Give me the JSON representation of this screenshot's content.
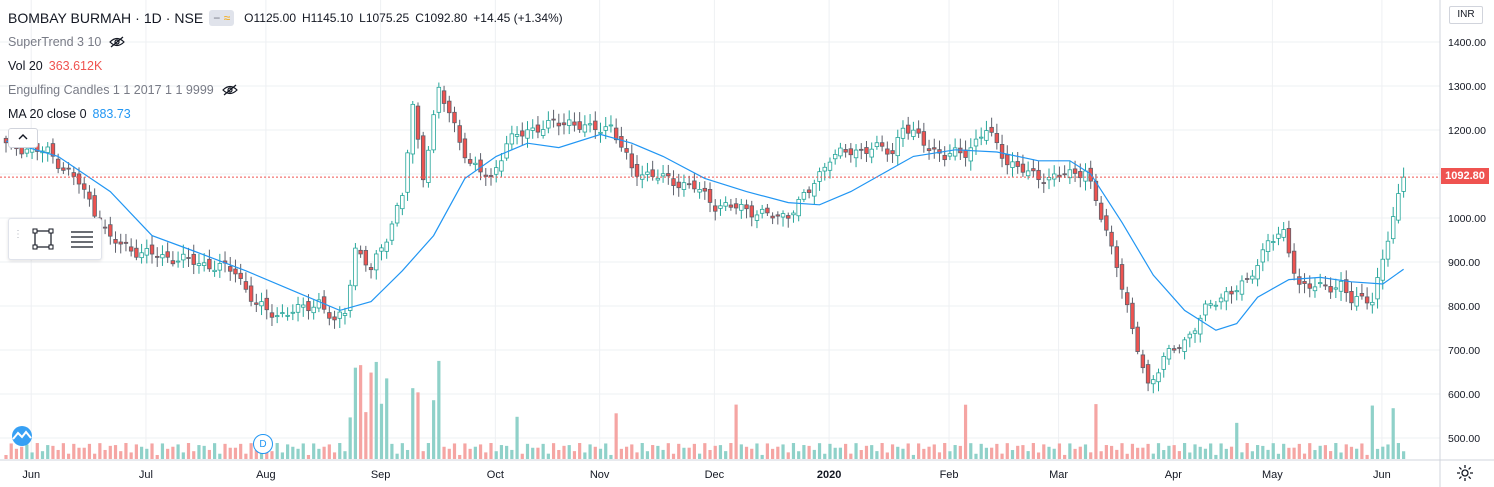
{
  "header": {
    "symbol": "BOMBAY BURMAH",
    "interval": "1D",
    "exchange": "NSE",
    "separator": "·",
    "open": "O1125.00",
    "high": "H1145.10",
    "low": "L1075.25",
    "close": "C1092.80",
    "change": "+14.45 (+1.34%)"
  },
  "indicators": [
    {
      "name": "SuperTrend 3 10",
      "value": ""
    },
    {
      "name": "Vol 20",
      "value": "363.612K"
    },
    {
      "name": "Engulfing Candles 1 1 2017 1 1 9999",
      "value": ""
    },
    {
      "name": "MA 20 close 0",
      "value": "883.73"
    }
  ],
  "controls": {
    "currency": "INR",
    "last_price_label": "1092.80",
    "dividend_marker": "D",
    "collapse": "^"
  },
  "colors": {
    "up": "#26a69a",
    "down": "#ef5350",
    "up_vol": "#8fd1c9",
    "down_vol": "#f5a5a3",
    "ma": "#2196f3",
    "last_line": "#ef5350",
    "grid": "#eef0f3"
  },
  "chart_data": {
    "type": "candlestick",
    "title": "BOMBAY BURMAH · 1D · NSE",
    "y_axis_ticks": [
      "500.00",
      "600.00",
      "700.00",
      "800.00",
      "900.00",
      "1000.00",
      "1100.00",
      "1200.00",
      "1300.00",
      "1400.00"
    ],
    "ylim": [
      460,
      1460
    ],
    "x_axis_ticks": [
      {
        "label": "Jun",
        "index": 1
      },
      {
        "label": "Jul",
        "index": 23
      },
      {
        "label": "Aug",
        "index": 46
      },
      {
        "label": "Sep",
        "index": 68
      },
      {
        "label": "Oct",
        "index": 90
      },
      {
        "label": "Nov",
        "index": 110
      },
      {
        "label": "Dec",
        "index": 132
      },
      {
        "label": "2020",
        "index": 154
      },
      {
        "label": "Feb",
        "index": 177
      },
      {
        "label": "Mar",
        "index": 198
      },
      {
        "label": "Apr",
        "index": 220
      },
      {
        "label": "May",
        "index": 239
      },
      {
        "label": "Jun",
        "index": 260
      }
    ],
    "candle_count": 265,
    "last_close": 1092.8,
    "key_points": [
      {
        "i": 0,
        "close": 1165
      },
      {
        "i": 8,
        "close": 1150
      },
      {
        "i": 14,
        "close": 1080
      },
      {
        "i": 20,
        "close": 950
      },
      {
        "i": 26,
        "close": 920
      },
      {
        "i": 34,
        "close": 905
      },
      {
        "i": 44,
        "close": 880
      },
      {
        "i": 48,
        "close": 800
      },
      {
        "i": 52,
        "close": 780
      },
      {
        "i": 56,
        "close": 790
      },
      {
        "i": 60,
        "close": 810
      },
      {
        "i": 63,
        "close": 760
      },
      {
        "i": 65,
        "close": 790
      },
      {
        "i": 67,
        "close": 930
      },
      {
        "i": 70,
        "close": 880
      },
      {
        "i": 73,
        "close": 960
      },
      {
        "i": 76,
        "close": 1050
      },
      {
        "i": 78,
        "close": 1250
      },
      {
        "i": 80,
        "close": 1100
      },
      {
        "i": 83,
        "close": 1290
      },
      {
        "i": 86,
        "close": 1210
      },
      {
        "i": 89,
        "close": 1120
      },
      {
        "i": 93,
        "close": 1090
      },
      {
        "i": 96,
        "close": 1170
      },
      {
        "i": 100,
        "close": 1200
      },
      {
        "i": 104,
        "close": 1210
      },
      {
        "i": 108,
        "close": 1220
      },
      {
        "i": 112,
        "close": 1200
      },
      {
        "i": 116,
        "close": 1210
      },
      {
        "i": 120,
        "close": 1110
      },
      {
        "i": 126,
        "close": 1090
      },
      {
        "i": 132,
        "close": 1070
      },
      {
        "i": 136,
        "close": 1030
      },
      {
        "i": 142,
        "close": 1020
      },
      {
        "i": 148,
        "close": 1000
      },
      {
        "i": 150,
        "close": 1010
      },
      {
        "i": 154,
        "close": 1060
      },
      {
        "i": 158,
        "close": 1140
      },
      {
        "i": 162,
        "close": 1150
      },
      {
        "i": 166,
        "close": 1160
      },
      {
        "i": 170,
        "close": 1150
      },
      {
        "i": 172,
        "close": 1210
      },
      {
        "i": 176,
        "close": 1170
      },
      {
        "i": 180,
        "close": 1140
      },
      {
        "i": 184,
        "close": 1150
      },
      {
        "i": 188,
        "close": 1200
      },
      {
        "i": 192,
        "close": 1130
      },
      {
        "i": 196,
        "close": 1100
      },
      {
        "i": 200,
        "close": 1090
      },
      {
        "i": 204,
        "close": 1100
      },
      {
        "i": 207,
        "close": 1110
      },
      {
        "i": 210,
        "close": 1000
      },
      {
        "i": 213,
        "close": 900
      },
      {
        "i": 216,
        "close": 740
      },
      {
        "i": 219,
        "close": 620
      },
      {
        "i": 222,
        "close": 680
      },
      {
        "i": 226,
        "close": 720
      },
      {
        "i": 230,
        "close": 790
      },
      {
        "i": 234,
        "close": 830
      },
      {
        "i": 238,
        "close": 850
      },
      {
        "i": 242,
        "close": 950
      },
      {
        "i": 245,
        "close": 960
      },
      {
        "i": 248,
        "close": 850
      },
      {
        "i": 252,
        "close": 840
      },
      {
        "i": 256,
        "close": 850
      },
      {
        "i": 258,
        "close": 810
      },
      {
        "i": 262,
        "close": 820
      },
      {
        "i": 264,
        "close": 900
      },
      {
        "i": 266,
        "close": 1000
      },
      {
        "i": 268,
        "close": 1092.8
      }
    ],
    "ma20_points": [
      {
        "i": 0,
        "v": 1175
      },
      {
        "i": 10,
        "v": 1140
      },
      {
        "i": 20,
        "v": 1060
      },
      {
        "i": 28,
        "v": 960
      },
      {
        "i": 36,
        "v": 925
      },
      {
        "i": 46,
        "v": 880
      },
      {
        "i": 56,
        "v": 830
      },
      {
        "i": 64,
        "v": 790
      },
      {
        "i": 70,
        "v": 810
      },
      {
        "i": 76,
        "v": 880
      },
      {
        "i": 82,
        "v": 960
      },
      {
        "i": 88,
        "v": 1090
      },
      {
        "i": 94,
        "v": 1140
      },
      {
        "i": 100,
        "v": 1170
      },
      {
        "i": 106,
        "v": 1160
      },
      {
        "i": 114,
        "v": 1190
      },
      {
        "i": 120,
        "v": 1170
      },
      {
        "i": 126,
        "v": 1140
      },
      {
        "i": 134,
        "v": 1090
      },
      {
        "i": 142,
        "v": 1060
      },
      {
        "i": 150,
        "v": 1035
      },
      {
        "i": 156,
        "v": 1030
      },
      {
        "i": 162,
        "v": 1060
      },
      {
        "i": 168,
        "v": 1100
      },
      {
        "i": 174,
        "v": 1140
      },
      {
        "i": 182,
        "v": 1155
      },
      {
        "i": 190,
        "v": 1150
      },
      {
        "i": 198,
        "v": 1130
      },
      {
        "i": 204,
        "v": 1130
      },
      {
        "i": 208,
        "v": 1100
      },
      {
        "i": 214,
        "v": 990
      },
      {
        "i": 220,
        "v": 870
      },
      {
        "i": 226,
        "v": 790
      },
      {
        "i": 232,
        "v": 745
      },
      {
        "i": 236,
        "v": 760
      },
      {
        "i": 240,
        "v": 820
      },
      {
        "i": 246,
        "v": 860
      },
      {
        "i": 252,
        "v": 865
      },
      {
        "i": 258,
        "v": 855
      },
      {
        "i": 264,
        "v": 850
      },
      {
        "i": 268,
        "v": 883.73
      }
    ]
  }
}
